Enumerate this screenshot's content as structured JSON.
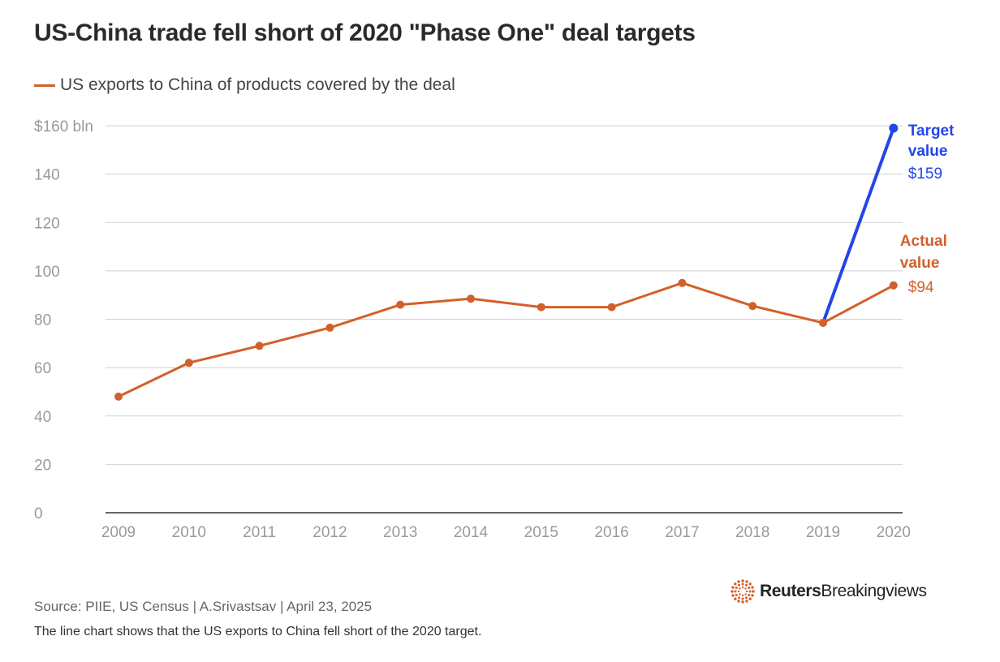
{
  "title": "US-China trade fell short of 2020 \"Phase One\" deal targets",
  "legend": {
    "label": "US exports to China of products covered by the deal"
  },
  "source": "Source: PIIE, US Census | A.Srivastsav | April 23, 2025",
  "note": "The line chart shows that the US exports to China fell short of the 2020 target.",
  "brand": {
    "bold": "Reuters",
    "light": "Breakingviews",
    "logo_icon": "reuters-dot-logo-icon"
  },
  "colors": {
    "actual": "#d2602a",
    "target": "#2346e8",
    "grid": "#d0d0d0",
    "axis": "#333333",
    "tick": "#9a9a9a"
  },
  "chart_data": {
    "type": "line",
    "x": [
      "2009",
      "2010",
      "2011",
      "2012",
      "2013",
      "2014",
      "2015",
      "2016",
      "2017",
      "2018",
      "2019",
      "2020"
    ],
    "series": [
      {
        "name": "US exports to China of products covered by the deal",
        "values": [
          48,
          62,
          69,
          76.5,
          86,
          88.5,
          85,
          85,
          95,
          85.5,
          78.5,
          94
        ]
      },
      {
        "name": "",
        "x": [
          "2019",
          "2020"
        ],
        "values": [
          78.5,
          159
        ]
      }
    ],
    "ylim": [
      0,
      160
    ],
    "yticks": [
      0,
      20,
      40,
      60,
      80,
      100,
      120,
      140,
      160
    ],
    "ytick_labels": [
      "0",
      "20",
      "40",
      "60",
      "80",
      "100",
      "120",
      "140",
      "$160 bln"
    ],
    "grid": true,
    "annotations": {
      "target": {
        "line1": "Target",
        "line2": "value",
        "value": "$159"
      },
      "actual": {
        "line1": "Actual",
        "line2": "value",
        "value": "$94"
      }
    }
  }
}
